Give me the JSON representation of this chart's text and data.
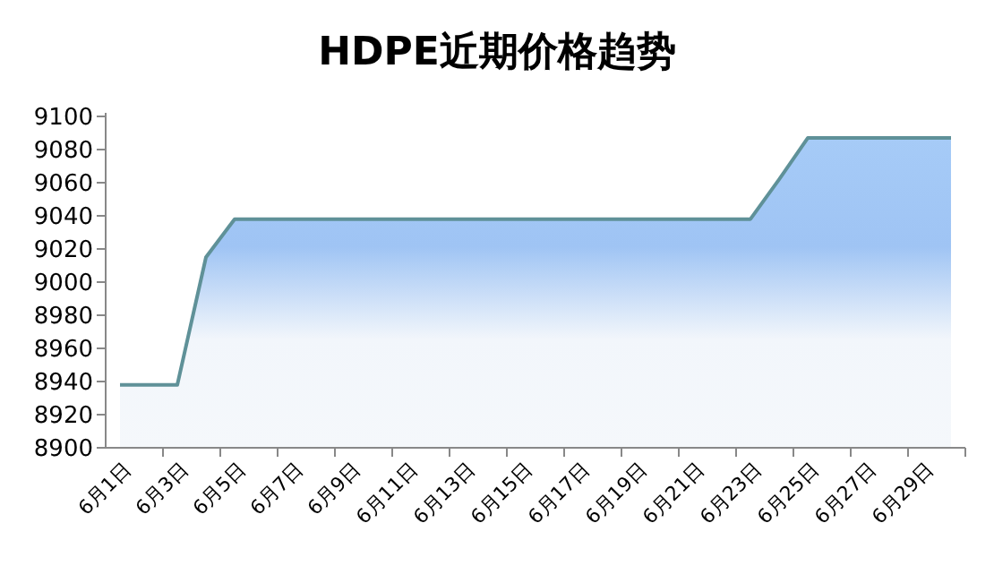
{
  "chart_data": {
    "type": "area",
    "title": "HDPE近期价格趋势",
    "categories": [
      "6月1日",
      null,
      "6月3日",
      null,
      "6月5日",
      null,
      "6月7日",
      null,
      "6月9日",
      null,
      "6月11日",
      null,
      "6月13日",
      null,
      "6月15日",
      null,
      "6月17日",
      null,
      "6月19日",
      null,
      "6月21日",
      null,
      "6月23日",
      null,
      "6月25日",
      null,
      "6月27日",
      null,
      "6月29日",
      null
    ],
    "series": [
      {
        "color": "#5f9198",
        "values": [
          8938,
          8938,
          8938,
          9015,
          9038,
          9038,
          9038,
          9038,
          9038,
          9038,
          9038,
          9038,
          9038,
          9038,
          9038,
          9038,
          9038,
          9038,
          9038,
          9038,
          9038,
          9038,
          9038,
          9062,
          9087,
          9087,
          9087,
          9087,
          9087,
          9087
        ]
      }
    ],
    "ylim": [
      8900,
      9100
    ],
    "yticks": [
      8900,
      8920,
      8940,
      8960,
      8980,
      9000,
      9020,
      9040,
      9060,
      9080,
      9100
    ]
  }
}
